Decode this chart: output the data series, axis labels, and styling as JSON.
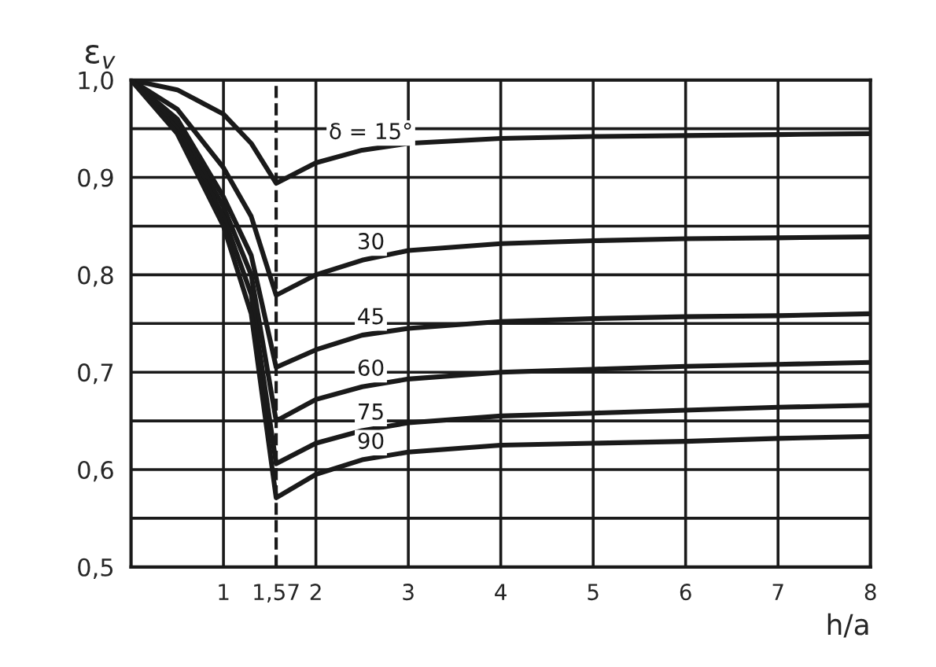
{
  "chart_data": {
    "type": "line",
    "xlabel": "h/a",
    "ylabel": "ε$_{v}$",
    "xlim": [
      0,
      8
    ],
    "ylim": [
      0.5,
      1.0
    ],
    "xticks": [
      1,
      {
        "value": 1.57,
        "label": "1,57"
      },
      2,
      3,
      4,
      5,
      6,
      7,
      8
    ],
    "yticks": [
      {
        "value": 0.5,
        "label": "0,5"
      },
      {
        "value": 0.55,
        "label": null
      },
      {
        "value": 0.6,
        "label": "0,6"
      },
      {
        "value": 0.65,
        "label": null
      },
      {
        "value": 0.7,
        "label": "0,7"
      },
      {
        "value": 0.75,
        "label": null
      },
      {
        "value": 0.8,
        "label": "0,8"
      },
      {
        "value": 0.85,
        "label": null
      },
      {
        "value": 0.9,
        "label": "0,9"
      },
      {
        "value": 0.95,
        "label": null
      },
      {
        "value": 1.0,
        "label": "1,0"
      }
    ],
    "grid": true,
    "line_style": "solid",
    "marker": "none",
    "ref_lines": [
      {
        "axis": "x",
        "value": 1.57,
        "label": null,
        "color": "#1a1a1a",
        "line_style": "dashed"
      }
    ],
    "x": [
      0,
      0.5,
      1,
      1.3,
      1.57,
      2,
      2.5,
      3,
      4,
      5,
      6,
      7,
      8
    ],
    "series": [
      {
        "name": "δ = 15°",
        "color": "#1a1a1a",
        "values": [
          1.0,
          0.99,
          0.965,
          0.935,
          0.894,
          0.915,
          0.928,
          0.935,
          0.94,
          0.942,
          0.943,
          0.944,
          0.945
        ]
      },
      {
        "name": "30",
        "color": "#1a1a1a",
        "values": [
          1.0,
          0.97,
          0.91,
          0.86,
          0.779,
          0.8,
          0.815,
          0.825,
          0.832,
          0.835,
          0.837,
          0.838,
          0.839
        ]
      },
      {
        "name": "45",
        "color": "#1a1a1a",
        "values": [
          1.0,
          0.96,
          0.88,
          0.82,
          0.705,
          0.723,
          0.738,
          0.745,
          0.752,
          0.755,
          0.757,
          0.758,
          0.76
        ]
      },
      {
        "name": "60",
        "color": "#1a1a1a",
        "values": [
          1.0,
          0.955,
          0.87,
          0.8,
          0.65,
          0.672,
          0.685,
          0.693,
          0.7,
          0.703,
          0.706,
          0.708,
          0.71
        ]
      },
      {
        "name": "75",
        "color": "#1a1a1a",
        "values": [
          1.0,
          0.95,
          0.86,
          0.78,
          0.606,
          0.627,
          0.64,
          0.648,
          0.655,
          0.658,
          0.661,
          0.664,
          0.666
        ]
      },
      {
        "name": "90",
        "color": "#1a1a1a",
        "values": [
          1.0,
          0.945,
          0.85,
          0.76,
          0.571,
          0.595,
          0.61,
          0.618,
          0.625,
          0.627,
          0.629,
          0.632,
          0.634
        ]
      }
    ]
  }
}
